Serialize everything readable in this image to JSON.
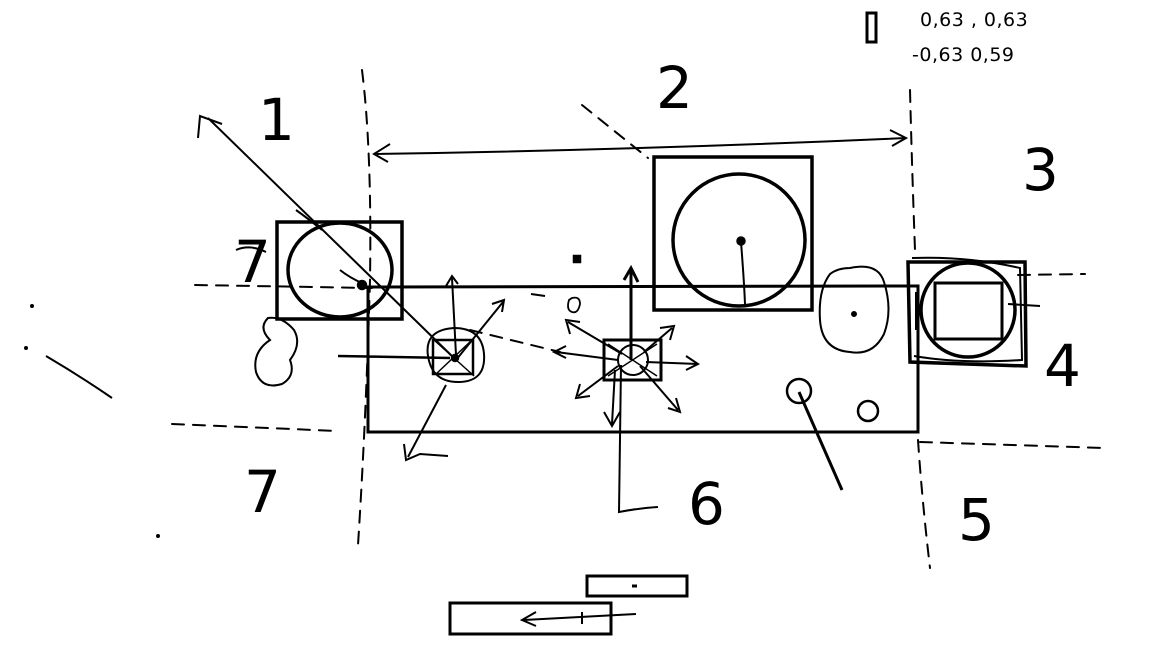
{
  "colors": {
    "ink": "#000000",
    "background": "#ffffff"
  },
  "coordinates": {
    "line1": "0,63 , 0,63",
    "line2": "-0,63   0,59"
  },
  "zones": [
    {
      "id": "1",
      "label": "1"
    },
    {
      "id": "2",
      "label": "2"
    },
    {
      "id": "3",
      "label": "3"
    },
    {
      "id": "4",
      "label": "4"
    },
    {
      "id": "5",
      "label": "5"
    },
    {
      "id": "6",
      "label": "6"
    },
    {
      "id": "7-left",
      "label": "7"
    },
    {
      "id": "7-bottom",
      "label": "7"
    }
  ]
}
